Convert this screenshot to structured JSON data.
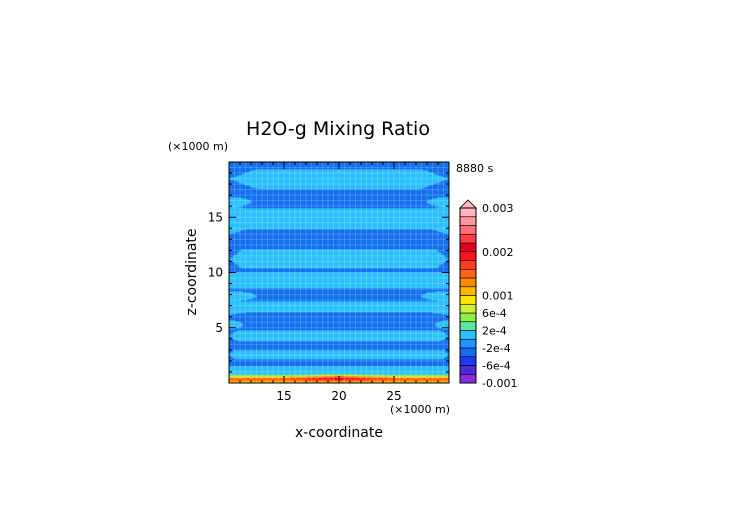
{
  "chart_data": {
    "type": "heatmap",
    "title": "H2O-g Mixing Ratio",
    "time_label": "8880 s",
    "xlabel": "x-coordinate",
    "ylabel": "z-coordinate",
    "x_unit": "(×1000 m)",
    "y_unit": "(×1000 m)",
    "xlim": [
      10,
      30
    ],
    "ylim": [
      0,
      20
    ],
    "x_ticks": [
      15,
      20,
      25
    ],
    "y_ticks": [
      5,
      10,
      15
    ],
    "grid": true,
    "colorbar": {
      "levels": [
        -0.001,
        -0.0008,
        -0.0006,
        -0.0004,
        -0.0002,
        0,
        0.0002,
        0.0004,
        0.0006,
        0.0008,
        0.001,
        0.0012,
        0.0014,
        0.0016,
        0.0018,
        0.002,
        0.0022,
        0.0024,
        0.0026,
        0.0028,
        0.003
      ],
      "colors": [
        "#8a2be2",
        "#4b2bd4",
        "#1e3cff",
        "#1470f0",
        "#1e96ff",
        "#2bc0ff",
        "#5ae6a0",
        "#8cf046",
        "#d2f02d",
        "#ffe600",
        "#ffb400",
        "#ff8c00",
        "#ff6414",
        "#ff3c1e",
        "#ff141e",
        "#e6001e",
        "#ff3c46",
        "#ff6e78",
        "#ff96a0",
        "#ffb4be"
      ],
      "tick_values": [
        0.003,
        0.002,
        0.001,
        0.0006,
        0.0002,
        -0.0002,
        -0.0006,
        -0.001
      ],
      "tick_labels": [
        "0.003",
        "0.002",
        "0.001",
        "6e-4",
        "2e-4",
        "-2e-4",
        "-6e-4",
        "-0.001"
      ]
    },
    "field": {
      "background_value": -0.0003,
      "band_value": 0.0001,
      "bands": [
        {
          "z": [
            0.9,
            1.5
          ],
          "edge_indent": 0.0
        },
        {
          "z": [
            2.2,
            3.0
          ],
          "edge_indent": 0.5
        },
        {
          "z": [
            3.8,
            4.8
          ],
          "edge_indent": 0.8
        },
        {
          "z": [
            6.4,
            7.4
          ],
          "edge_indent": -1.5
        },
        {
          "z": [
            8.6,
            10.0
          ],
          "edge_indent": 0.0
        },
        {
          "z": [
            10.4,
            12.1
          ],
          "edge_indent": 1.2
        },
        {
          "z": [
            13.9,
            15.8
          ],
          "edge_indent": -1.5
        },
        {
          "z": [
            17.6,
            19.4
          ],
          "edge_indent": 2.5
        }
      ],
      "edge_notches": [
        {
          "z": 5.3,
          "dz": 0.8,
          "dx": 1.3
        },
        {
          "z": 7.9,
          "dz": 0.9,
          "dx": 2.5
        },
        {
          "z": 16.4,
          "dz": 0.9,
          "dx": 2.0
        }
      ],
      "surface_layer": {
        "z": [
          0.0,
          0.9
        ],
        "profile": [
          {
            "z": 0.0,
            "value": 0.0005
          },
          {
            "z": 0.18,
            "value": 0.0012
          },
          {
            "z": 0.45,
            "value": 0.0016
          },
          {
            "z": 0.7,
            "value": 0.0004
          },
          {
            "z": 0.9,
            "value": 0.0001
          }
        ],
        "hotspot": {
          "x": 20,
          "z": 0.45,
          "value": 0.0021,
          "half_width": 5.0
        }
      }
    }
  }
}
